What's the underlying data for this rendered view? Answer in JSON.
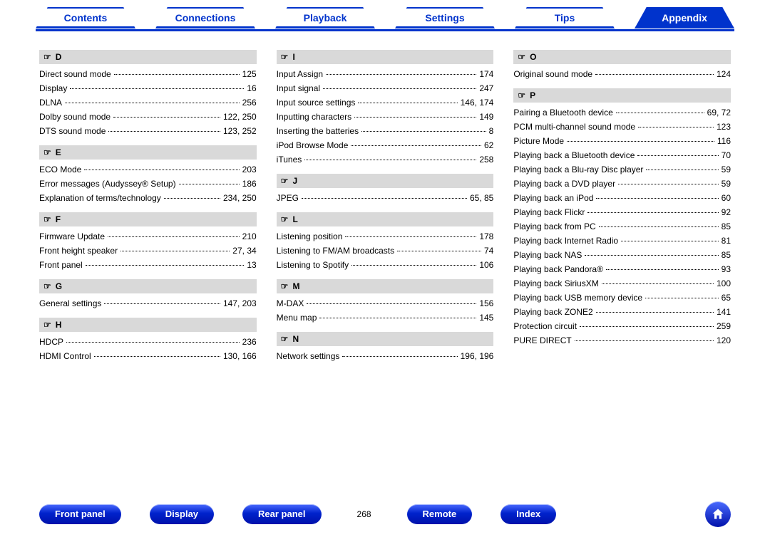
{
  "colors": {
    "accent": "#0033cc",
    "button": "#0022cc",
    "header_bg": "#d9d9d9"
  },
  "page_number": "268",
  "tabs": [
    {
      "label": "Contents",
      "active": false
    },
    {
      "label": "Connections",
      "active": false
    },
    {
      "label": "Playback",
      "active": false
    },
    {
      "label": "Settings",
      "active": false
    },
    {
      "label": "Tips",
      "active": false
    },
    {
      "label": "Appendix",
      "active": true
    }
  ],
  "bottom_buttons": [
    {
      "label": "Front panel"
    },
    {
      "label": "Display"
    },
    {
      "label": "Rear panel"
    },
    {
      "label": "Remote"
    },
    {
      "label": "Index"
    }
  ],
  "columns": [
    [
      {
        "letter": "D",
        "entries": [
          {
            "label": "Direct sound mode",
            "page": "125"
          },
          {
            "label": "Display",
            "page": "16"
          },
          {
            "label": "DLNA",
            "page": "256"
          },
          {
            "label": "Dolby sound mode",
            "page": "122, 250"
          },
          {
            "label": "DTS sound mode",
            "page": "123, 252"
          }
        ]
      },
      {
        "letter": "E",
        "entries": [
          {
            "label": "ECO Mode",
            "page": "203"
          },
          {
            "label": "Error messages (Audyssey® Setup)",
            "page": "186"
          },
          {
            "label": "Explanation of terms/technology",
            "page": "234, 250"
          }
        ]
      },
      {
        "letter": "F",
        "entries": [
          {
            "label": "Firmware Update",
            "page": "210"
          },
          {
            "label": "Front height speaker",
            "page": "27, 34"
          },
          {
            "label": "Front panel",
            "page": "13"
          }
        ]
      },
      {
        "letter": "G",
        "entries": [
          {
            "label": "General settings",
            "page": "147, 203"
          }
        ]
      },
      {
        "letter": "H",
        "entries": [
          {
            "label": "HDCP",
            "page": "236"
          },
          {
            "label": "HDMI Control",
            "page": "130, 166"
          }
        ]
      }
    ],
    [
      {
        "letter": "I",
        "entries": [
          {
            "label": "Input Assign",
            "page": "174"
          },
          {
            "label": "Input signal",
            "page": "247"
          },
          {
            "label": "Input source settings",
            "page": "146, 174"
          },
          {
            "label": "Inputting characters",
            "page": "149"
          },
          {
            "label": "Inserting the batteries",
            "page": "8"
          },
          {
            "label": "iPod Browse Mode",
            "page": "62"
          },
          {
            "label": "iTunes",
            "page": "258"
          }
        ]
      },
      {
        "letter": "J",
        "entries": [
          {
            "label": "JPEG",
            "page": "65, 85"
          }
        ]
      },
      {
        "letter": "L",
        "entries": [
          {
            "label": "Listening position",
            "page": "178"
          },
          {
            "label": "Listening to FM/AM broadcasts",
            "page": "74"
          },
          {
            "label": "Listening to Spotify",
            "page": "106"
          }
        ]
      },
      {
        "letter": "M",
        "entries": [
          {
            "label": "M-DAX",
            "page": "156"
          },
          {
            "label": "Menu map",
            "page": "145"
          }
        ]
      },
      {
        "letter": "N",
        "entries": [
          {
            "label": "Network settings",
            "page": "196, 196"
          }
        ]
      }
    ],
    [
      {
        "letter": "O",
        "entries": [
          {
            "label": "Original sound mode",
            "page": "124"
          }
        ]
      },
      {
        "letter": "P",
        "entries": [
          {
            "label": "Pairing a Bluetooth device",
            "page": "69, 72"
          },
          {
            "label": "PCM multi-channel sound mode",
            "page": "123"
          },
          {
            "label": "Picture Mode",
            "page": "116"
          },
          {
            "label": "Playing back a Bluetooth device",
            "page": "70"
          },
          {
            "label": "Playing back a Blu-ray Disc player",
            "page": "59"
          },
          {
            "label": "Playing back a DVD player",
            "page": "59"
          },
          {
            "label": "Playing back an iPod",
            "page": "60"
          },
          {
            "label": "Playing back Flickr",
            "page": "92"
          },
          {
            "label": "Playing back from PC",
            "page": "85"
          },
          {
            "label": "Playing back Internet Radio",
            "page": "81"
          },
          {
            "label": "Playing back NAS",
            "page": "85"
          },
          {
            "label": "Playing back Pandora®",
            "page": "93"
          },
          {
            "label": "Playing back SiriusXM",
            "page": "100"
          },
          {
            "label": "Playing back USB memory device",
            "page": "65"
          },
          {
            "label": "Playing back ZONE2",
            "page": "141"
          },
          {
            "label": "Protection circuit",
            "page": "259"
          },
          {
            "label": "PURE DIRECT",
            "page": "120"
          }
        ]
      }
    ]
  ]
}
